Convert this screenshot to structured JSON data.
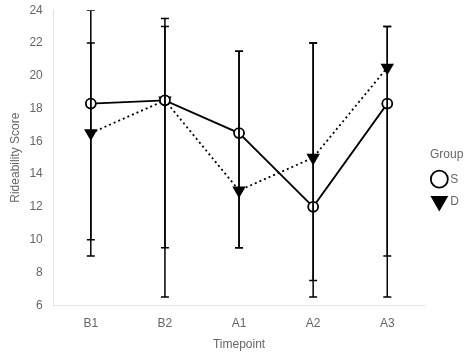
{
  "chart_data": {
    "type": "line",
    "xlabel": "Timepoint",
    "ylabel": "Rideability Score",
    "categories": [
      "B1",
      "B2",
      "A1",
      "A2",
      "A3"
    ],
    "series": [
      {
        "name": "S",
        "color": "black",
        "marker": "circle_open",
        "line_style": "solid",
        "values": [
          18.3,
          18.5,
          16.5,
          12.0,
          18.3
        ],
        "ci_low": [
          10.0,
          9.5,
          9.5,
          6.5,
          9.0
        ],
        "ci_high": [
          22.0,
          23.0,
          21.5,
          22.0,
          23.0
        ]
      },
      {
        "name": "D",
        "color": "black",
        "marker": "triangle_down",
        "line_style": "dotted",
        "values": [
          16.5,
          18.5,
          13.0,
          15.0,
          20.5
        ],
        "ci_low": [
          9.0,
          6.5,
          9.5,
          7.5,
          6.5
        ],
        "ci_high": [
          24.0,
          23.5,
          21.5,
          22.0,
          23.0
        ]
      }
    ],
    "ylim": [
      6,
      24
    ],
    "yticks": [
      6,
      8,
      10,
      12,
      14,
      16,
      18,
      20,
      22,
      24
    ],
    "legend_title": "Group",
    "legend": "right",
    "grid": false
  }
}
